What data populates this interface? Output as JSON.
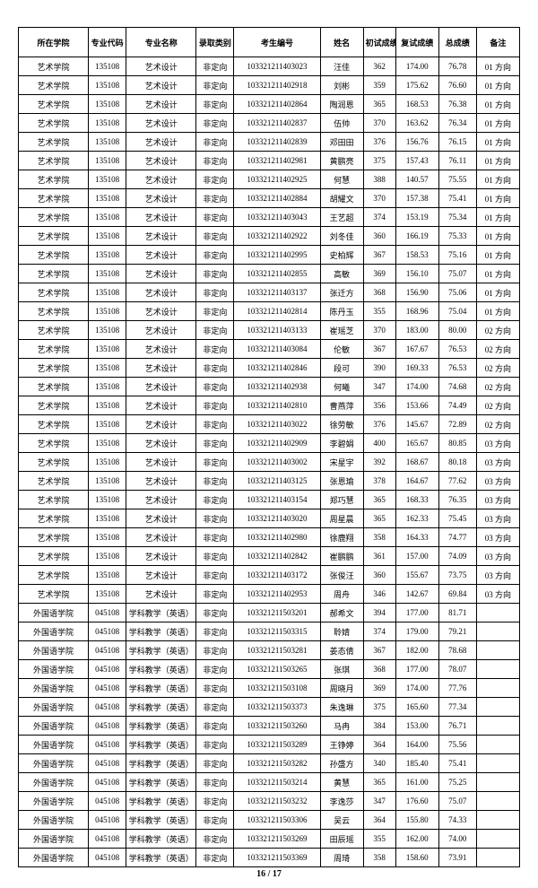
{
  "headers": [
    "所在学院",
    "专业代码",
    "专业名称",
    "录取类别",
    "考生编号",
    "姓名",
    "初试成绩",
    "复试成绩",
    "总成绩",
    "备注"
  ],
  "rows": [
    [
      "艺术学院",
      "135108",
      "艺术设计",
      "非定向",
      "103321211403023",
      "汪佳",
      "362",
      "174.00",
      "76.78",
      "01 方向"
    ],
    [
      "艺术学院",
      "135108",
      "艺术设计",
      "非定向",
      "103321211402918",
      "刘彬",
      "359",
      "175.62",
      "76.60",
      "01 方向"
    ],
    [
      "艺术学院",
      "135108",
      "艺术设计",
      "非定向",
      "103321211402864",
      "陶润恩",
      "365",
      "168.53",
      "76.38",
      "01 方向"
    ],
    [
      "艺术学院",
      "135108",
      "艺术设计",
      "非定向",
      "103321211402837",
      "伍帅",
      "370",
      "163.62",
      "76.34",
      "01 方向"
    ],
    [
      "艺术学院",
      "135108",
      "艺术设计",
      "非定向",
      "103321211402839",
      "邓田田",
      "376",
      "156.76",
      "76.15",
      "01 方向"
    ],
    [
      "艺术学院",
      "135108",
      "艺术设计",
      "非定向",
      "103321211402981",
      "黄鹏亮",
      "375",
      "157.43",
      "76.11",
      "01 方向"
    ],
    [
      "艺术学院",
      "135108",
      "艺术设计",
      "非定向",
      "103321211402925",
      "何慧",
      "388",
      "140.57",
      "75.55",
      "01 方向"
    ],
    [
      "艺术学院",
      "135108",
      "艺术设计",
      "非定向",
      "103321211402884",
      "胡耀文",
      "370",
      "157.38",
      "75.41",
      "01 方向"
    ],
    [
      "艺术学院",
      "135108",
      "艺术设计",
      "非定向",
      "103321211403043",
      "王艺超",
      "374",
      "153.19",
      "75.34",
      "01 方向"
    ],
    [
      "艺术学院",
      "135108",
      "艺术设计",
      "非定向",
      "103321211402922",
      "刘冬佳",
      "360",
      "166.19",
      "75.33",
      "01 方向"
    ],
    [
      "艺术学院",
      "135108",
      "艺术设计",
      "非定向",
      "103321211402995",
      "史柏辉",
      "367",
      "158.53",
      "75.16",
      "01 方向"
    ],
    [
      "艺术学院",
      "135108",
      "艺术设计",
      "非定向",
      "103321211402855",
      "高敏",
      "369",
      "156.10",
      "75.07",
      "01 方向"
    ],
    [
      "艺术学院",
      "135108",
      "艺术设计",
      "非定向",
      "103321211403137",
      "张迁方",
      "368",
      "156.90",
      "75.06",
      "01 方向"
    ],
    [
      "艺术学院",
      "135108",
      "艺术设计",
      "非定向",
      "103321211402814",
      "陈丹玉",
      "355",
      "168.96",
      "75.04",
      "01 方向"
    ],
    [
      "艺术学院",
      "135108",
      "艺术设计",
      "非定向",
      "103321211403133",
      "崔瑶芝",
      "370",
      "183.00",
      "80.00",
      "02 方向"
    ],
    [
      "艺术学院",
      "135108",
      "艺术设计",
      "非定向",
      "103321211403084",
      "伦敏",
      "367",
      "167.67",
      "76.53",
      "02 方向"
    ],
    [
      "艺术学院",
      "135108",
      "艺术设计",
      "非定向",
      "103321211402846",
      "段可",
      "390",
      "169.33",
      "76.53",
      "02 方向"
    ],
    [
      "艺术学院",
      "135108",
      "艺术设计",
      "非定向",
      "103321211402938",
      "何曦",
      "347",
      "174.00",
      "74.68",
      "02 方向"
    ],
    [
      "艺术学院",
      "135108",
      "艺术设计",
      "非定向",
      "103321211402810",
      "曹燕萍",
      "356",
      "153.66",
      "74.49",
      "02 方向"
    ],
    [
      "艺术学院",
      "135108",
      "艺术设计",
      "非定向",
      "103321211403022",
      "徐劳敏",
      "376",
      "145.67",
      "72.89",
      "02 方向"
    ],
    [
      "艺术学院",
      "135108",
      "艺术设计",
      "非定向",
      "103321211402909",
      "李碧娟",
      "400",
      "165.67",
      "80.85",
      "03 方向"
    ],
    [
      "艺术学院",
      "135108",
      "艺术设计",
      "非定向",
      "103321211403002",
      "宋星宇",
      "392",
      "168.67",
      "80.18",
      "03 方向"
    ],
    [
      "艺术学院",
      "135108",
      "艺术设计",
      "非定向",
      "103321211403125",
      "张恩瑜",
      "378",
      "164.67",
      "77.62",
      "03 方向"
    ],
    [
      "艺术学院",
      "135108",
      "艺术设计",
      "非定向",
      "103321211403154",
      "郑巧慧",
      "365",
      "168.33",
      "76.35",
      "03 方向"
    ],
    [
      "艺术学院",
      "135108",
      "艺术设计",
      "非定向",
      "103321211403020",
      "周星晨",
      "365",
      "162.33",
      "75.45",
      "03 方向"
    ],
    [
      "艺术学院",
      "135108",
      "艺术设计",
      "非定向",
      "103321211402980",
      "徐鹿翔",
      "358",
      "164.33",
      "74.77",
      "03 方向"
    ],
    [
      "艺术学院",
      "135108",
      "艺术设计",
      "非定向",
      "103321211402842",
      "崔鹏鹏",
      "361",
      "157.00",
      "74.09",
      "03 方向"
    ],
    [
      "艺术学院",
      "135108",
      "艺术设计",
      "非定向",
      "103321211403172",
      "张俊汪",
      "360",
      "155.67",
      "73.75",
      "03 方向"
    ],
    [
      "艺术学院",
      "135108",
      "艺术设计",
      "非定向",
      "103321211402953",
      "周舟",
      "346",
      "142.67",
      "69.84",
      "03 方向"
    ],
    [
      "外国语学院",
      "045108",
      "学科教学（英语）",
      "非定向",
      "103321211503201",
      "郝希文",
      "394",
      "177.00",
      "81.71",
      ""
    ],
    [
      "外国语学院",
      "045108",
      "学科教学（英语）",
      "非定向",
      "103321211503315",
      "聆婧",
      "374",
      "179.00",
      "79.21",
      ""
    ],
    [
      "外国语学院",
      "045108",
      "学科教学（英语）",
      "非定向",
      "103321211503281",
      "姜态倩",
      "367",
      "182.00",
      "78.68",
      ""
    ],
    [
      "外国语学院",
      "045108",
      "学科教学（英语）",
      "非定向",
      "103321211503265",
      "张琪",
      "368",
      "177.00",
      "78.07",
      ""
    ],
    [
      "外国语学院",
      "045108",
      "学科教学（英语）",
      "非定向",
      "103321211503108",
      "周晓月",
      "369",
      "174.00",
      "77.76",
      ""
    ],
    [
      "外国语学院",
      "045108",
      "学科教学（英语）",
      "非定向",
      "103321211503373",
      "朱逸琳",
      "375",
      "165.60",
      "77.34",
      ""
    ],
    [
      "外国语学院",
      "045108",
      "学科教学（英语）",
      "非定向",
      "103321211503260",
      "马冉",
      "384",
      "153.00",
      "76.71",
      ""
    ],
    [
      "外国语学院",
      "045108",
      "学科教学（英语）",
      "非定向",
      "103321211503289",
      "王铮婷",
      "364",
      "164.00",
      "75.56",
      ""
    ],
    [
      "外国语学院",
      "045108",
      "学科教学（英语）",
      "非定向",
      "103321211503282",
      "孙盛方",
      "340",
      "185.40",
      "75.41",
      ""
    ],
    [
      "外国语学院",
      "045108",
      "学科教学（英语）",
      "非定向",
      "103321211503214",
      "黄慧",
      "365",
      "161.00",
      "75.25",
      ""
    ],
    [
      "外国语学院",
      "045108",
      "学科教学（英语）",
      "非定向",
      "103321211503232",
      "李逸莎",
      "347",
      "176.60",
      "75.07",
      ""
    ],
    [
      "外国语学院",
      "045108",
      "学科教学（英语）",
      "非定向",
      "103321211503306",
      "吴云",
      "364",
      "155.80",
      "74.33",
      ""
    ],
    [
      "外国语学院",
      "045108",
      "学科教学（英语）",
      "非定向",
      "103321211503269",
      "田辰瑶",
      "355",
      "162.00",
      "74.00",
      ""
    ],
    [
      "外国语学院",
      "045108",
      "学科教学（英语）",
      "非定向",
      "103321211503369",
      "周琦",
      "358",
      "158.60",
      "73.91",
      ""
    ]
  ],
  "footer": "16 / 17"
}
